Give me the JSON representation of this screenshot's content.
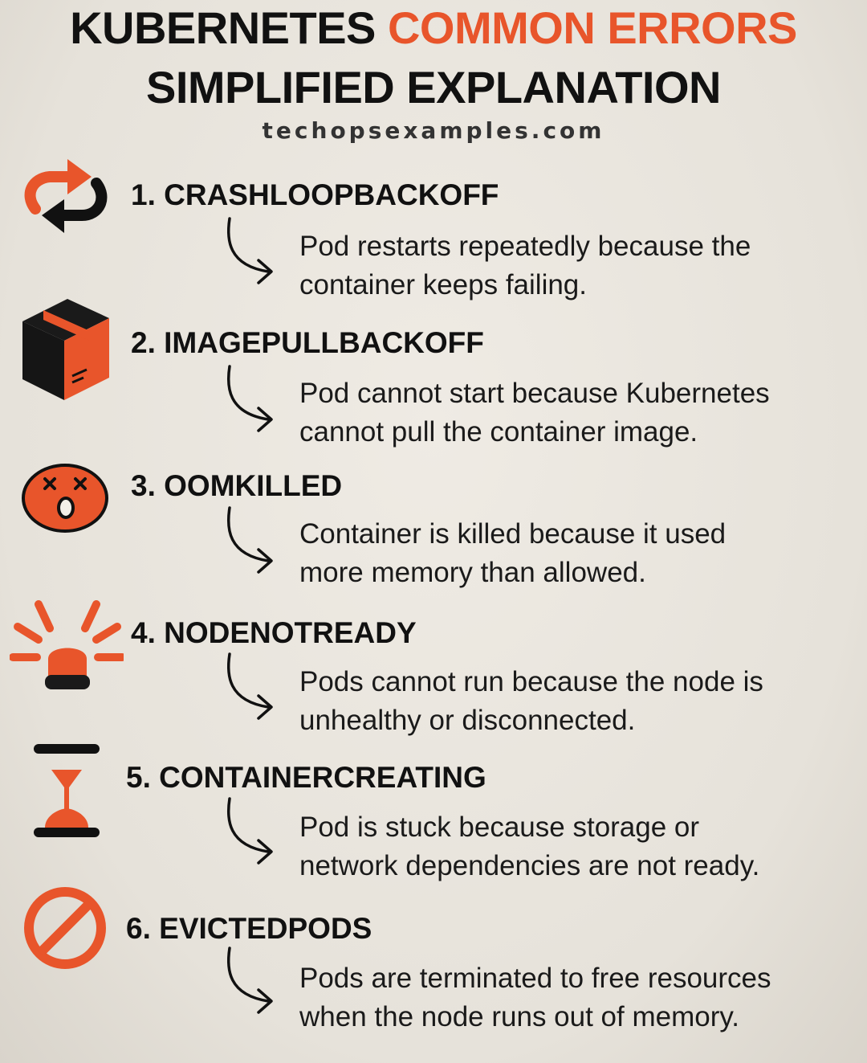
{
  "header": {
    "title_part1": "KUBERNETES",
    "title_part2": "COMMON ERRORS",
    "title_line2": "SIMPLIFIED EXPLANATION",
    "website": "techopsexamples.com"
  },
  "colors": {
    "accent": "#e8552b",
    "text": "#111111",
    "background": "#e9e5de"
  },
  "items": [
    {
      "icon": "restart-loop-icon",
      "title": "1. CRASHLOOPBACKOFF",
      "desc_line1": "Pod restarts repeatedly because the",
      "desc_line2": "container keeps failing."
    },
    {
      "icon": "package-box-icon",
      "title": "2. IMAGEPULLBACKOFF",
      "desc_line1": "Pod cannot start because Kubernetes",
      "desc_line2": "cannot pull the container image."
    },
    {
      "icon": "dead-face-icon",
      "title": "3. OOMKILLED",
      "desc_line1": "Container is killed because it used",
      "desc_line2": "more memory than allowed."
    },
    {
      "icon": "alarm-siren-icon",
      "title": "4. NODENOTREADY",
      "desc_line1": "Pods cannot run because the node is",
      "desc_line2": "unhealthy or disconnected."
    },
    {
      "icon": "hourglass-icon",
      "title": "5. CONTAINERCREATING",
      "desc_line1": "Pod is stuck because storage or",
      "desc_line2": "network dependencies are not ready."
    },
    {
      "icon": "prohibited-icon",
      "title": "6. EVICTEDPODS",
      "desc_line1": "Pods are terminated to free resources",
      "desc_line2": "when the node runs out of memory."
    }
  ]
}
